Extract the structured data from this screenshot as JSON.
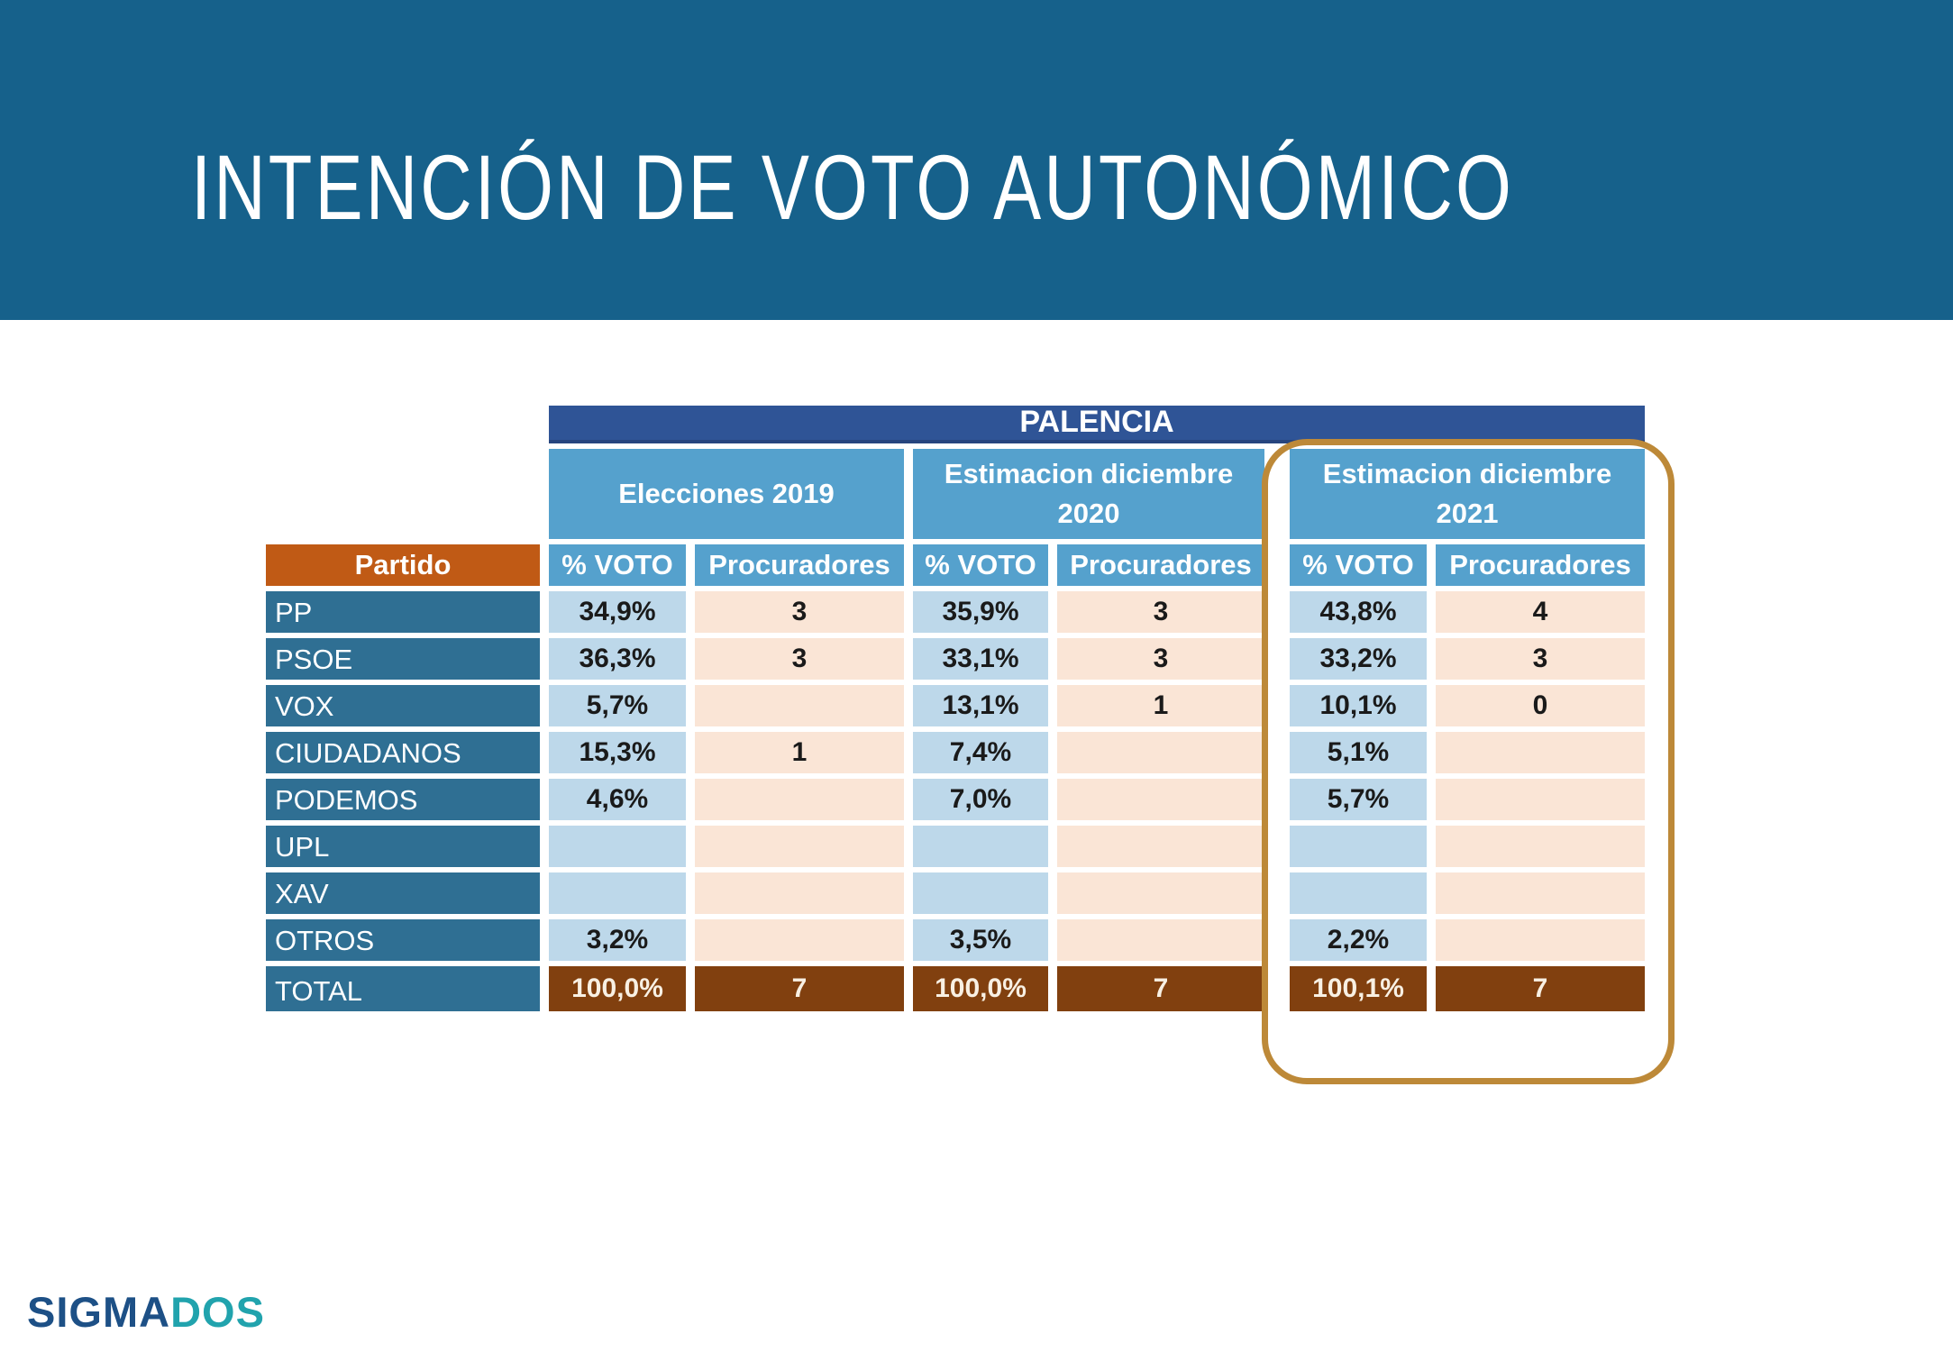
{
  "slide": {
    "title": "INTENCIÓN DE VOTO AUTONÓMICO"
  },
  "table": {
    "region_header": "PALENCIA",
    "partido_header": "Partido",
    "groups": [
      {
        "line1": "Elecciones 2019",
        "line2": ""
      },
      {
        "line1": "Estimacion diciembre",
        "line2": "2020"
      },
      {
        "line1": "Estimacion diciembre",
        "line2": "2021"
      }
    ],
    "subheaders": [
      "% VOTO",
      "Procuradores",
      "% VOTO",
      "Procuradores",
      "% VOTO",
      "Procuradores"
    ],
    "rows": [
      {
        "party": "PP",
        "cells": [
          "34,9%",
          "3",
          "35,9%",
          "3",
          "43,8%",
          "4"
        ]
      },
      {
        "party": "PSOE",
        "cells": [
          "36,3%",
          "3",
          "33,1%",
          "3",
          "33,2%",
          "3"
        ]
      },
      {
        "party": "VOX",
        "cells": [
          "5,7%",
          "",
          "13,1%",
          "1",
          "10,1%",
          "0"
        ]
      },
      {
        "party": "CIUDADANOS",
        "cells": [
          "15,3%",
          "1",
          "7,4%",
          "",
          "5,1%",
          ""
        ]
      },
      {
        "party": "PODEMOS",
        "cells": [
          "4,6%",
          "",
          "7,0%",
          "",
          "5,7%",
          ""
        ]
      },
      {
        "party": "UPL",
        "cells": [
          "",
          "",
          "",
          "",
          "",
          ""
        ]
      },
      {
        "party": "XAV",
        "cells": [
          "",
          "",
          "",
          "",
          "",
          ""
        ]
      },
      {
        "party": "OTROS",
        "cells": [
          "3,2%",
          "",
          "3,5%",
          "",
          "2,2%",
          ""
        ]
      }
    ],
    "total": {
      "label": "TOTAL",
      "cells": [
        "100,0%",
        "7",
        "100,0%",
        "7",
        "100,1%",
        "7"
      ]
    },
    "highlight": {
      "target_group": "Estimacion diciembre 2021",
      "outline_color": "#BD8938"
    }
  },
  "footer": {
    "logo_sigma": "SIGMA",
    "logo_dos": "DOS"
  },
  "colors": {
    "banner_bg": "#16618B",
    "region_header_bg": "#2F5496",
    "group_header_bg": "#55A1CD",
    "partido_header_bg": "#C05A15",
    "party_cell_bg": "#2F6F93",
    "voto_cell_bg": "#BDD8EA",
    "procuradores_cell_bg": "#FAE5D6",
    "total_cell_bg": "#81400F",
    "highlight_outline": "#BD8938",
    "logo_sigma_color": "#1D5086",
    "logo_dos_color": "#21A3AD"
  },
  "chart_data": {
    "type": "table",
    "title": "INTENCIÓN DE VOTO AUTONÓMICO - PALENCIA",
    "column_groups": [
      "Elecciones 2019",
      "Estimacion diciembre 2020",
      "Estimacion diciembre 2021"
    ],
    "columns": [
      "Partido",
      "% VOTO 2019",
      "Procuradores 2019",
      "% VOTO 2020",
      "Procuradores 2020",
      "% VOTO 2021",
      "Procuradores 2021"
    ],
    "rows": [
      [
        "PP",
        "34,9%",
        "3",
        "35,9%",
        "3",
        "43,8%",
        "4"
      ],
      [
        "PSOE",
        "36,3%",
        "3",
        "33,1%",
        "3",
        "33,2%",
        "3"
      ],
      [
        "VOX",
        "5,7%",
        "",
        "13,1%",
        "1",
        "10,1%",
        "0"
      ],
      [
        "CIUDADANOS",
        "15,3%",
        "1",
        "7,4%",
        "",
        "5,1%",
        ""
      ],
      [
        "PODEMOS",
        "4,6%",
        "",
        "7,0%",
        "",
        "5,7%",
        ""
      ],
      [
        "UPL",
        "",
        "",
        "",
        "",
        "",
        ""
      ],
      [
        "XAV",
        "",
        "",
        "",
        "",
        "",
        ""
      ],
      [
        "OTROS",
        "3,2%",
        "",
        "3,5%",
        "",
        "2,2%",
        ""
      ],
      [
        "TOTAL",
        "100,0%",
        "7",
        "100,0%",
        "7",
        "100,1%",
        "7"
      ]
    ]
  }
}
